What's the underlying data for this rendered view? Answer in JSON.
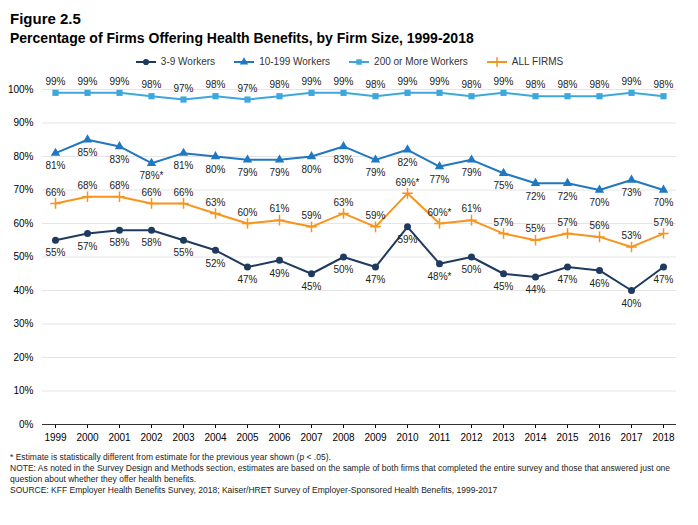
{
  "chart_data": {
    "type": "line",
    "title": "Figure 2.5",
    "subtitle": "Percentage of Firms Offering Health Benefits, by Firm Size, 1999-2018",
    "categories": [
      "1999",
      "2000",
      "2001",
      "2002",
      "2003",
      "2004",
      "2005",
      "2006",
      "2007",
      "2008",
      "2009",
      "2010",
      "2011",
      "2012",
      "2013",
      "2014",
      "2015",
      "2016",
      "2017",
      "2018"
    ],
    "series": [
      {
        "name": "3-9 Workers",
        "color": "#1f3a5f",
        "marker": "circle",
        "values": [
          55,
          57,
          58,
          58,
          55,
          52,
          47,
          49,
          45,
          50,
          47,
          59,
          48,
          50,
          45,
          44,
          47,
          46,
          40,
          47
        ],
        "value_labels": [
          "55%",
          "57%",
          "58%",
          "58%",
          "55%",
          "52%",
          "47%",
          "49%",
          "45%",
          "50%",
          "47%",
          "59%",
          "48%*",
          "50%",
          "45%",
          "44%",
          "47%",
          "46%",
          "40%",
          "47%"
        ]
      },
      {
        "name": "10-199 Workers",
        "color": "#1f78c1",
        "marker": "triangle",
        "values": [
          81,
          85,
          83,
          78,
          81,
          80,
          79,
          79,
          80,
          83,
          79,
          82,
          77,
          79,
          75,
          72,
          72,
          70,
          73,
          70
        ],
        "value_labels": [
          "81%",
          "85%",
          "83%",
          "78%*",
          "81%",
          "80%",
          "79%",
          "79%",
          "80%",
          "83%",
          "79%",
          "82%",
          "77%",
          "79%",
          "75%",
          "72%",
          "72%",
          "70%",
          "73%",
          "70%"
        ]
      },
      {
        "name": "200 or More Workers",
        "color": "#3ea8dd",
        "marker": "square",
        "values": [
          99,
          99,
          99,
          98,
          97,
          98,
          97,
          98,
          99,
          99,
          98,
          99,
          99,
          98,
          99,
          98,
          98,
          98,
          99,
          98
        ],
        "value_labels": [
          "99%",
          "99%",
          "99%",
          "98%",
          "97%",
          "98%",
          "97%",
          "98%",
          "99%",
          "99%",
          "98%",
          "99%",
          "99%",
          "98%",
          "99%",
          "98%",
          "98%",
          "98%",
          "99%",
          "98%"
        ]
      },
      {
        "name": "ALL FIRMS",
        "color": "#f7941d",
        "marker": "plus",
        "values": [
          66,
          68,
          68,
          66,
          66,
          63,
          60,
          61,
          59,
          63,
          59,
          69,
          60,
          61,
          57,
          55,
          57,
          56,
          53,
          57
        ],
        "value_labels": [
          "66%",
          "68%",
          "68%",
          "66%",
          "66%",
          "63%",
          "60%",
          "61%",
          "59%",
          "63%",
          "59%",
          "69%*",
          "60%*",
          "61%",
          "57%",
          "55%",
          "57%",
          "56%",
          "53%",
          "57%"
        ]
      }
    ],
    "ylim": [
      0,
      100
    ],
    "yticks": [
      {
        "value": 0,
        "label": "0%"
      },
      {
        "value": 10,
        "label": "10%"
      },
      {
        "value": 20,
        "label": "20%"
      },
      {
        "value": 30,
        "label": "30%"
      },
      {
        "value": 40,
        "label": "40%"
      },
      {
        "value": 50,
        "label": "50%"
      },
      {
        "value": 60,
        "label": "60%"
      },
      {
        "value": 70,
        "label": "70%"
      },
      {
        "value": 80,
        "label": "80%"
      },
      {
        "value": 90,
        "label": "90%"
      },
      {
        "value": 100,
        "label": "100%"
      }
    ],
    "grid": true,
    "legend": "top",
    "data_labels": true,
    "notes": [
      "* Estimate is statistically different from estimate for the previous year shown (p < .05).",
      "NOTE: As noted in the Survey Design and Methods section, estimates are based on the sample of both firms that completed the entire survey and those that answered just one question about whether they offer health benefits.",
      "SOURCE: KFF Employer Health Benefits Survey, 2018; Kaiser/HRET Survey of Employer-Sponsored Health Benefits, 1999-2017"
    ]
  }
}
